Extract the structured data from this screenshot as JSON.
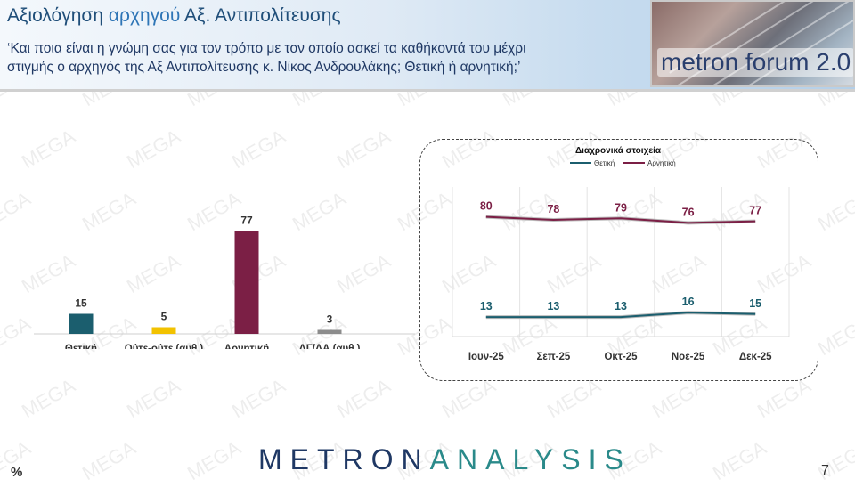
{
  "header": {
    "title_prefix": "Αξιολόγηση",
    "title_highlight": "αρχηγού",
    "title_suffix": "Αξ. Αντιπολίτευσης",
    "question_line1": "‘Και ποια είναι η γνώμη σας για τον τρόπο με τον οποίο ασκεί τα καθήκοντά του μέχρι",
    "question_line2": "στιγμής ο αρχηγός της Αξ Αντιπολίτευσης κ. Νίκος Ανδρουλάκης; Θετική ή αρνητική;’"
  },
  "brand": {
    "text": "metron forum 2.0"
  },
  "footer": {
    "percent": "%",
    "page": "7",
    "logo_part1": "METRON",
    "logo_part2": "ANALYSIS"
  },
  "watermark": {
    "text": "MEGA"
  },
  "colors": {
    "positive": "#1b5e6e",
    "neutral": "#f2c200",
    "negative": "#7b1f45",
    "dkna": "#8c8c8c",
    "title": "#1f4e79"
  },
  "chart_data": [
    {
      "type": "bar",
      "categories": [
        "Θετική",
        "Ούτε-ούτε (αυθ.)",
        "Αρνητική",
        "ΔΓ/ΔΑ (αυθ.)"
      ],
      "values": [
        15,
        5,
        77,
        3
      ],
      "colors": [
        "#1b5e6e",
        "#f2c200",
        "#7b1f45",
        "#8c8c8c"
      ],
      "ylim": [
        0,
        100
      ]
    },
    {
      "type": "line",
      "title": "Διαχρονικά στοιχεία",
      "categories": [
        "Ιουν-25",
        "Σεπ-25",
        "Οκτ-25",
        "Νοε-25",
        "Δεκ-25"
      ],
      "series": [
        {
          "name": "Θετική",
          "values": [
            13,
            13,
            13,
            16,
            15
          ],
          "color": "#1b5e6e"
        },
        {
          "name": "Αρνητική",
          "values": [
            80,
            78,
            79,
            76,
            77
          ],
          "color": "#7b1f45"
        }
      ],
      "legend": "top-center",
      "ylim": [
        0,
        100
      ],
      "grid": true
    }
  ]
}
